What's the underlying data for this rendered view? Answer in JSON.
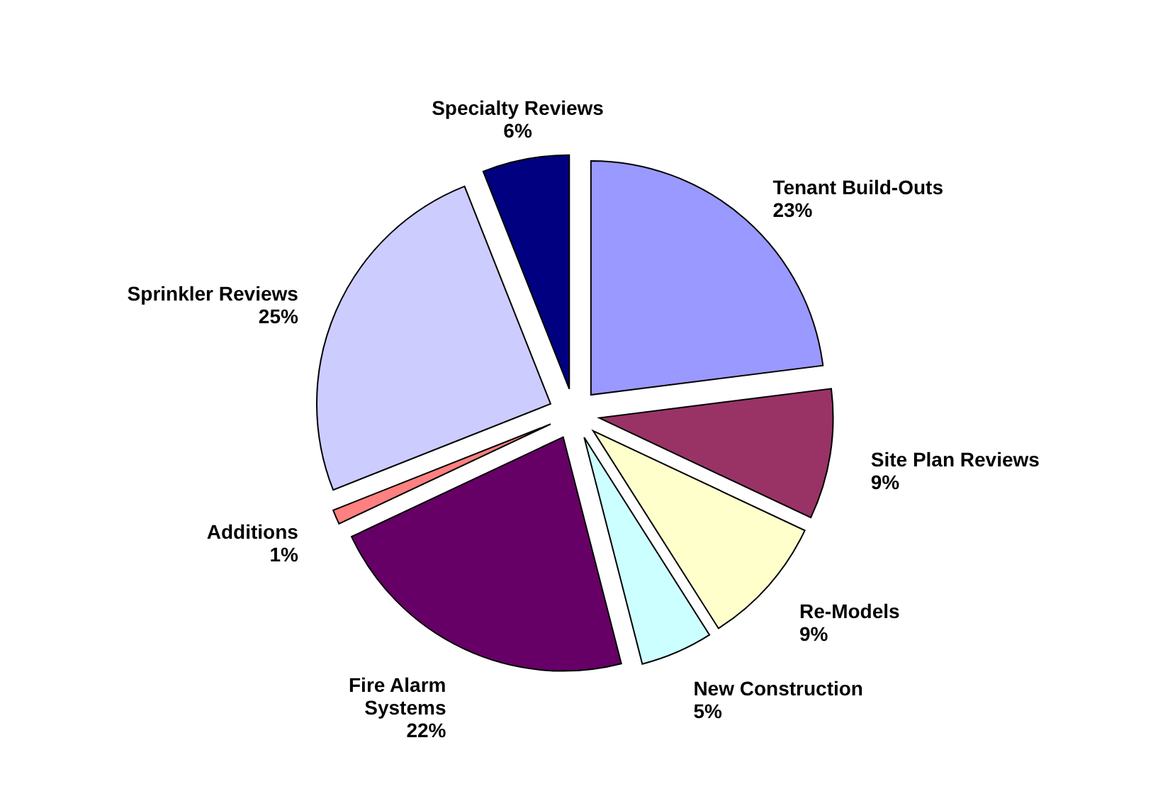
{
  "chart_data": {
    "type": "pie",
    "categories": [
      "Tenant Build-Outs",
      "Site Plan Reviews",
      "Re-Models",
      "New Construction",
      "Fire Alarm Systems",
      "Additions",
      "Sprinkler Reviews",
      "Specialty Reviews"
    ],
    "values": [
      23,
      9,
      9,
      5,
      22,
      1,
      25,
      6
    ],
    "colors": [
      "#9999ff",
      "#993366",
      "#ffffcc",
      "#ccffff",
      "#660066",
      "#ff8080",
      "#ccccff",
      "#000080"
    ],
    "value_labels": [
      "23%",
      "9%",
      "9%",
      "5%",
      "22%",
      "1%",
      "25%",
      "6%"
    ]
  }
}
